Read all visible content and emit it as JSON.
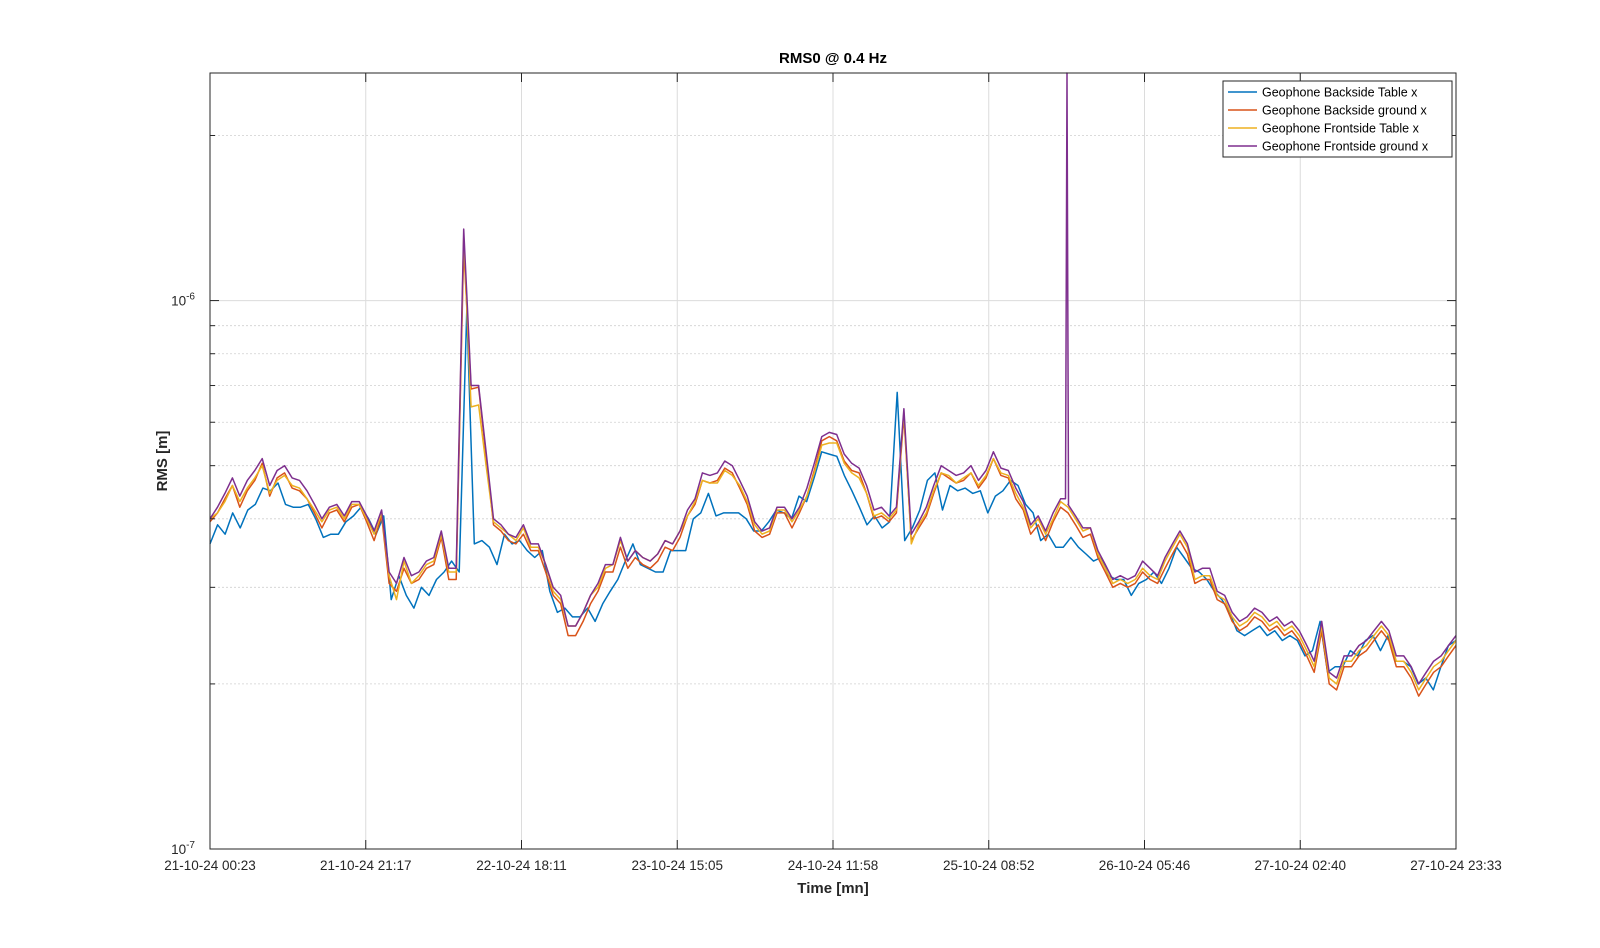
{
  "chart_data": {
    "type": "line",
    "title": "RMS0 @ 0.4 Hz",
    "xlabel": "Time [mn]",
    "ylabel": "RMS [m]",
    "yscale": "log",
    "ylim": [
      1e-07,
      2.6e-06
    ],
    "y_ticks": [
      {
        "value": 1e-07,
        "mantissa": "10",
        "exponent": "-7"
      },
      {
        "value": 1e-06,
        "mantissa": "10",
        "exponent": "-6"
      }
    ],
    "x_ticks": [
      "21-10-24 00:23",
      "21-10-24 21:17",
      "22-10-24 18:11",
      "23-10-24 15:05",
      "24-10-24 11:58",
      "25-10-24 08:52",
      "26-10-24 05:46",
      "27-10-24 02:40",
      "27-10-24 23:33"
    ],
    "grid": true,
    "minor_grid": true,
    "legend_position": "top-right",
    "series": [
      {
        "name": "Geophone Backside Table x",
        "color": "#0072BD",
        "values": [
          3.6e-07,
          3.9e-07,
          3.75e-07,
          4.1e-07,
          3.85e-07,
          4.15e-07,
          4.25e-07,
          4.55e-07,
          4.5e-07,
          4.65e-07,
          4.25e-07,
          4.2e-07,
          4.2e-07,
          4.25e-07,
          4e-07,
          3.7e-07,
          3.75e-07,
          3.75e-07,
          3.95e-07,
          4.05e-07,
          4.2e-07,
          4e-07,
          3.75e-07,
          4.05e-07,
          2.85e-07,
          3.15e-07,
          2.9e-07,
          2.75e-07,
          3e-07,
          2.9e-07,
          3.1e-07,
          3.2e-07,
          3.35e-07,
          3.2e-07,
          9.6e-07,
          3.6e-07,
          3.65e-07,
          3.55e-07,
          3.3e-07,
          3.75e-07,
          3.6e-07,
          3.65e-07,
          3.5e-07,
          3.4e-07,
          3.5e-07,
          2.95e-07,
          2.7e-07,
          2.75e-07,
          2.65e-07,
          2.65e-07,
          2.75e-07,
          2.6e-07,
          2.8e-07,
          2.95e-07,
          3.1e-07,
          3.35e-07,
          3.6e-07,
          3.3e-07,
          3.25e-07,
          3.2e-07,
          3.2e-07,
          3.5e-07,
          3.5e-07,
          3.5e-07,
          4e-07,
          4.1e-07,
          4.45e-07,
          4.05e-07,
          4.1e-07,
          4.1e-07,
          4.1e-07,
          4e-07,
          3.8e-07,
          3.8e-07,
          3.95e-07,
          4.15e-07,
          4.1e-07,
          4e-07,
          4.4e-07,
          4.3e-07,
          4.75e-07,
          5.3e-07,
          5.25e-07,
          5.2e-07,
          4.8e-07,
          4.5e-07,
          4.2e-07,
          3.9e-07,
          4.05e-07,
          3.85e-07,
          3.95e-07,
          6.8e-07,
          3.65e-07,
          3.85e-07,
          4.15e-07,
          4.7e-07,
          4.85e-07,
          4.15e-07,
          4.6e-07,
          4.5e-07,
          4.55e-07,
          4.45e-07,
          4.5e-07,
          4.1e-07,
          4.4e-07,
          4.5e-07,
          4.7e-07,
          4.6e-07,
          4.25e-07,
          4.1e-07,
          3.65e-07,
          3.75e-07,
          3.55e-07,
          3.55e-07,
          3.7e-07,
          3.55e-07,
          3.45e-07,
          3.35e-07,
          3.4e-07,
          3.15e-07,
          3.1e-07,
          3.1e-07,
          2.9e-07,
          3.05e-07,
          3.1e-07,
          3.2e-07,
          3.05e-07,
          3.25e-07,
          3.55e-07,
          3.4e-07,
          3.25e-07,
          3.2e-07,
          3.1e-07,
          2.95e-07,
          2.85e-07,
          2.7e-07,
          2.5e-07,
          2.45e-07,
          2.5e-07,
          2.55e-07,
          2.45e-07,
          2.5e-07,
          2.4e-07,
          2.45e-07,
          2.4e-07,
          2.25e-07,
          2.3e-07,
          2.6e-07,
          2.1e-07,
          2.15e-07,
          2.15e-07,
          2.3e-07,
          2.25e-07,
          2.4e-07,
          2.45e-07,
          2.3e-07,
          2.45e-07,
          2.2e-07,
          2.2e-07,
          2.15e-07,
          2e-07,
          2.05e-07,
          1.95e-07,
          2.15e-07,
          2.35e-07,
          2.4e-07
        ]
      },
      {
        "name": "Geophone Backside ground x",
        "color": "#D95319",
        "values": [
          3.95e-07,
          4.1e-07,
          4.35e-07,
          4.6e-07,
          4.2e-07,
          4.5e-07,
          4.7e-07,
          5.05e-07,
          4.4e-07,
          4.75e-07,
          4.85e-07,
          4.55e-07,
          4.5e-07,
          4.35e-07,
          4.1e-07,
          3.85e-07,
          4.1e-07,
          4.15e-07,
          3.95e-07,
          4.2e-07,
          4.25e-07,
          3.95e-07,
          3.65e-07,
          4.05e-07,
          3.05e-07,
          2.95e-07,
          3.25e-07,
          3.05e-07,
          3.1e-07,
          3.25e-07,
          3.3e-07,
          3.7e-07,
          3.1e-07,
          3.1e-07,
          1.25e-06,
          6.9e-07,
          6.95e-07,
          5.2e-07,
          3.9e-07,
          3.8e-07,
          3.65e-07,
          3.6e-07,
          3.75e-07,
          3.5e-07,
          3.5e-07,
          3.2e-07,
          2.9e-07,
          2.8e-07,
          2.45e-07,
          2.45e-07,
          2.6e-07,
          2.8e-07,
          2.95e-07,
          3.2e-07,
          3.2e-07,
          3.55e-07,
          3.25e-07,
          3.4e-07,
          3.3e-07,
          3.25e-07,
          3.35e-07,
          3.55e-07,
          3.5e-07,
          3.7e-07,
          4.05e-07,
          4.25e-07,
          4.7e-07,
          4.65e-07,
          4.7e-07,
          4.95e-07,
          4.85e-07,
          4.55e-07,
          4.25e-07,
          3.8e-07,
          3.7e-07,
          3.75e-07,
          4.1e-07,
          4.1e-07,
          3.85e-07,
          4.1e-07,
          4.4e-07,
          4.9e-07,
          5.55e-07,
          5.65e-07,
          5.55e-07,
          5.1e-07,
          4.9e-07,
          4.85e-07,
          4.45e-07,
          4e-07,
          4.05e-07,
          3.95e-07,
          4.1e-07,
          6.15e-07,
          3.65e-07,
          3.85e-07,
          4.05e-07,
          4.45e-07,
          4.85e-07,
          4.75e-07,
          4.65e-07,
          4.7e-07,
          4.85e-07,
          4.55e-07,
          4.75e-07,
          5.15e-07,
          4.8e-07,
          4.75e-07,
          4.35e-07,
          4.15e-07,
          3.75e-07,
          3.9e-07,
          3.65e-07,
          3.95e-07,
          4.2e-07,
          4.1e-07,
          3.9e-07,
          3.7e-07,
          3.75e-07,
          3.4e-07,
          3.2e-07,
          3e-07,
          3.05e-07,
          3e-07,
          3.05e-07,
          3.2e-07,
          3.1e-07,
          3.05e-07,
          3.25e-07,
          3.45e-07,
          3.65e-07,
          3.45e-07,
          3.05e-07,
          3.1e-07,
          3.1e-07,
          2.85e-07,
          2.8e-07,
          2.6e-07,
          2.5e-07,
          2.55e-07,
          2.65e-07,
          2.6e-07,
          2.5e-07,
          2.55e-07,
          2.45e-07,
          2.5e-07,
          2.4e-07,
          2.25e-07,
          2.1e-07,
          2.5e-07,
          2e-07,
          1.95e-07,
          2.15e-07,
          2.15e-07,
          2.25e-07,
          2.3e-07,
          2.4e-07,
          2.5e-07,
          2.4e-07,
          2.15e-07,
          2.15e-07,
          2.05e-07,
          1.9e-07,
          2e-07,
          2.1e-07,
          2.15e-07,
          2.25e-07,
          2.35e-07
        ]
      },
      {
        "name": "Geophone Frontside Table x",
        "color": "#EDB120",
        "values": [
          4e-07,
          4.1e-07,
          4.3e-07,
          4.6e-07,
          4.3e-07,
          4.55e-07,
          4.75e-07,
          5e-07,
          4.45e-07,
          4.7e-07,
          4.8e-07,
          4.6e-07,
          4.55e-07,
          4.35e-07,
          4.15e-07,
          3.95e-07,
          4.15e-07,
          4.2e-07,
          4e-07,
          4.25e-07,
          4.25e-07,
          4e-07,
          3.75e-07,
          4.1e-07,
          3.15e-07,
          2.85e-07,
          3.35e-07,
          3.05e-07,
          3.15e-07,
          3.3e-07,
          3.35e-07,
          3.75e-07,
          3.2e-07,
          3.2e-07,
          1.3e-06,
          6.4e-07,
          6.45e-07,
          5e-07,
          3.95e-07,
          3.85e-07,
          3.75e-07,
          3.65e-07,
          3.85e-07,
          3.55e-07,
          3.55e-07,
          3.3e-07,
          2.95e-07,
          2.85e-07,
          2.55e-07,
          2.55e-07,
          2.7e-07,
          2.9e-07,
          3e-07,
          3.25e-07,
          3.3e-07,
          3.65e-07,
          3.35e-07,
          3.5e-07,
          3.4e-07,
          3.35e-07,
          3.45e-07,
          3.65e-07,
          3.6e-07,
          3.8e-07,
          4.05e-07,
          4.3e-07,
          4.7e-07,
          4.65e-07,
          4.65e-07,
          4.9e-07,
          4.8e-07,
          4.6e-07,
          4.3e-07,
          3.9e-07,
          3.75e-07,
          3.8e-07,
          4.15e-07,
          4.15e-07,
          3.95e-07,
          4.15e-07,
          4.4e-07,
          4.85e-07,
          5.45e-07,
          5.5e-07,
          5.5e-07,
          5.05e-07,
          4.85e-07,
          4.75e-07,
          4.45e-07,
          4.05e-07,
          4.1e-07,
          4e-07,
          4.15e-07,
          6.25e-07,
          3.6e-07,
          3.9e-07,
          4.1e-07,
          4.5e-07,
          4.85e-07,
          4.8e-07,
          4.65e-07,
          4.75e-07,
          4.85e-07,
          4.6e-07,
          4.8e-07,
          5.15e-07,
          4.85e-07,
          4.8e-07,
          4.45e-07,
          4.2e-07,
          3.85e-07,
          4e-07,
          3.75e-07,
          4e-07,
          4.3e-07,
          4.2e-07,
          4e-07,
          3.8e-07,
          3.85e-07,
          3.45e-07,
          3.25e-07,
          3.05e-07,
          3.1e-07,
          3.05e-07,
          3.1e-07,
          3.25e-07,
          3.15e-07,
          3.1e-07,
          3.35e-07,
          3.55e-07,
          3.75e-07,
          3.55e-07,
          3.1e-07,
          3.15e-07,
          3.15e-07,
          2.9e-07,
          2.85e-07,
          2.65e-07,
          2.55e-07,
          2.6e-07,
          2.7e-07,
          2.65e-07,
          2.55e-07,
          2.6e-07,
          2.5e-07,
          2.55e-07,
          2.45e-07,
          2.3e-07,
          2.15e-07,
          2.55e-07,
          2.05e-07,
          2e-07,
          2.2e-07,
          2.2e-07,
          2.3e-07,
          2.35e-07,
          2.45e-07,
          2.55e-07,
          2.45e-07,
          2.2e-07,
          2.2e-07,
          2.1e-07,
          1.95e-07,
          2.05e-07,
          2.15e-07,
          2.2e-07,
          2.3e-07,
          2.4e-07
        ]
      },
      {
        "name": "Geophone Frontside ground x",
        "color": "#7E2F8E",
        "values": [
          4e-07,
          4.2e-07,
          4.45e-07,
          4.75e-07,
          4.4e-07,
          4.7e-07,
          4.9e-07,
          5.15e-07,
          4.6e-07,
          4.9e-07,
          5e-07,
          4.75e-07,
          4.7e-07,
          4.5e-07,
          4.25e-07,
          4e-07,
          4.2e-07,
          4.25e-07,
          4.05e-07,
          4.3e-07,
          4.3e-07,
          4.05e-07,
          3.8e-07,
          4.15e-07,
          3.2e-07,
          3.05e-07,
          3.4e-07,
          3.15e-07,
          3.2e-07,
          3.35e-07,
          3.4e-07,
          3.8e-07,
          3.25e-07,
          3.25e-07,
          1.35e-06,
          7e-07,
          7e-07,
          5.3e-07,
          4e-07,
          3.9e-07,
          3.75e-07,
          3.7e-07,
          3.9e-07,
          3.6e-07,
          3.6e-07,
          3.3e-07,
          3e-07,
          2.9e-07,
          2.55e-07,
          2.55e-07,
          2.7e-07,
          2.9e-07,
          3.05e-07,
          3.3e-07,
          3.3e-07,
          3.7e-07,
          3.35e-07,
          3.5e-07,
          3.4e-07,
          3.35e-07,
          3.45e-07,
          3.65e-07,
          3.6e-07,
          3.8e-07,
          4.15e-07,
          4.35e-07,
          4.85e-07,
          4.8e-07,
          4.85e-07,
          5.1e-07,
          5e-07,
          4.7e-07,
          4.4e-07,
          3.95e-07,
          3.8e-07,
          3.85e-07,
          4.2e-07,
          4.2e-07,
          4e-07,
          4.2e-07,
          4.55e-07,
          5.05e-07,
          5.65e-07,
          5.75e-07,
          5.7e-07,
          5.25e-07,
          5.05e-07,
          4.95e-07,
          4.6e-07,
          4.15e-07,
          4.2e-07,
          4.05e-07,
          4.2e-07,
          6.35e-07,
          3.75e-07,
          3.95e-07,
          4.2e-07,
          4.6e-07,
          5e-07,
          4.9e-07,
          4.8e-07,
          4.85e-07,
          5e-07,
          4.7e-07,
          4.9e-07,
          5.3e-07,
          4.95e-07,
          4.9e-07,
          4.55e-07,
          4.3e-07,
          3.9e-07,
          4.05e-07,
          3.8e-07,
          4.1e-07,
          4.35e-07,
          4.25e-07,
          4.05e-07,
          3.85e-07,
          3.85e-07,
          3.5e-07,
          3.3e-07,
          3.1e-07,
          3.15e-07,
          3.1e-07,
          3.15e-07,
          3.35e-07,
          3.25e-07,
          3.15e-07,
          3.4e-07,
          3.6e-07,
          3.8e-07,
          3.6e-07,
          3.2e-07,
          3.25e-07,
          3.25e-07,
          2.95e-07,
          2.9e-07,
          2.7e-07,
          2.6e-07,
          2.65e-07,
          2.75e-07,
          2.7e-07,
          2.6e-07,
          2.65e-07,
          2.55e-07,
          2.6e-07,
          2.5e-07,
          2.35e-07,
          2.2e-07,
          2.6e-07,
          2.1e-07,
          2.05e-07,
          2.25e-07,
          2.25e-07,
          2.35e-07,
          2.4e-07,
          2.5e-07,
          2.6e-07,
          2.5e-07,
          2.25e-07,
          2.25e-07,
          2.15e-07,
          2e-07,
          2.1e-07,
          2.2e-07,
          2.25e-07,
          2.35e-07,
          2.45e-07
        ]
      }
    ],
    "spikes": [
      {
        "series": "Geophone Frontside ground x",
        "position": 0.6878,
        "value": 2.6e-06
      }
    ]
  }
}
